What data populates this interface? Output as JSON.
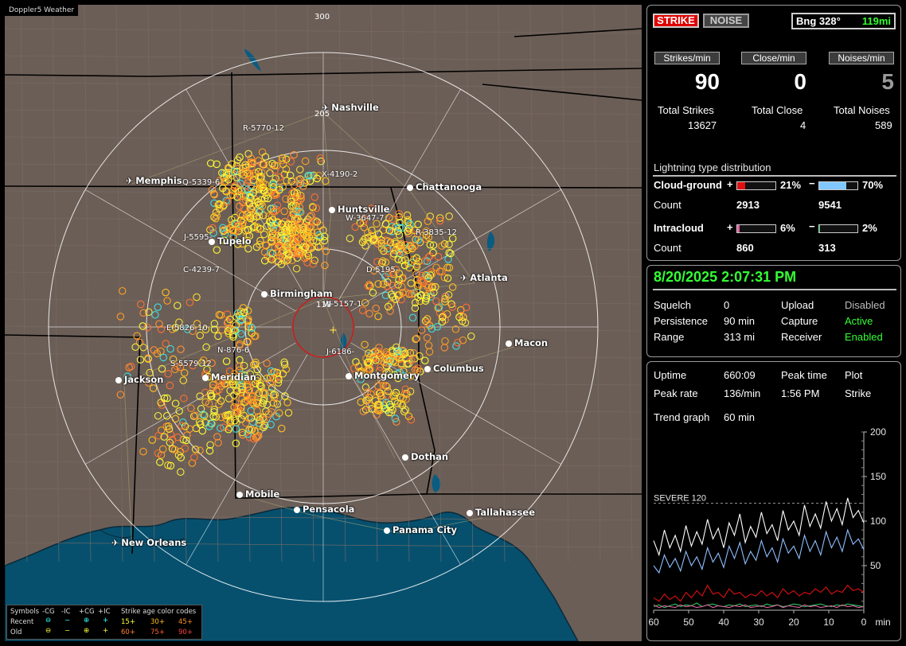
{
  "map": {
    "title": "Doppler5 Weather",
    "ring_labels": [
      "300",
      "205",
      "110"
    ],
    "cities": [
      {
        "name": "Nashville",
        "kind": "airport"
      },
      {
        "name": "Memphis",
        "kind": "airport"
      },
      {
        "name": "Chattanooga",
        "kind": "city"
      },
      {
        "name": "Huntsville",
        "kind": "city"
      },
      {
        "name": "Tupelo",
        "kind": "city"
      },
      {
        "name": "Atlanta",
        "kind": "airport"
      },
      {
        "name": "Birmingham",
        "kind": "city"
      },
      {
        "name": "Macon",
        "kind": "city"
      },
      {
        "name": "Jackson",
        "kind": "city"
      },
      {
        "name": "Meridian",
        "kind": "city"
      },
      {
        "name": "Montgomery",
        "kind": "city"
      },
      {
        "name": "Columbus",
        "kind": "city"
      },
      {
        "name": "Dothan",
        "kind": "city"
      },
      {
        "name": "Mobile",
        "kind": "city"
      },
      {
        "name": "Pensacola",
        "kind": "city"
      },
      {
        "name": "Tallahassee",
        "kind": "city"
      },
      {
        "name": "Panama City",
        "kind": "city"
      },
      {
        "name": "New Orleans",
        "kind": "airport"
      }
    ],
    "cell_labels": [
      "R-5770-12",
      "X-4190-2",
      "Q-5339-6",
      "W-3647-7",
      "J-5595-",
      "R-3835-12",
      "C-4239-7",
      "D-5195-",
      "W-5157-1",
      "E-5826-10",
      "N-876-6",
      "J-6186-",
      "S-5579-12"
    ],
    "legend": {
      "symbols_title": "Symbols",
      "col_headers": [
        "-CG",
        "-IC",
        "+CG",
        "+IC"
      ],
      "rows": [
        "Recent",
        "Old"
      ],
      "color_title": "Strike age color codes",
      "recent_codes": [
        "15+",
        "30+",
        "45+"
      ],
      "old_codes": [
        "60+",
        "75+",
        "90+"
      ]
    }
  },
  "status": {
    "strike_btn": "STRIKE",
    "noise_btn": "NOISE",
    "bearing": "Bng 328°",
    "distance": "119mi"
  },
  "rates": [
    {
      "label": "Strikes/min",
      "value": "90",
      "total_label": "Total Strikes",
      "total": "13627",
      "color": "#ffffff"
    },
    {
      "label": "Close/min",
      "value": "0",
      "total_label": "Total Close",
      "total": "4",
      "color": "#ffffff"
    },
    {
      "label": "Noises/min",
      "value": "5",
      "total_label": "Total Noises",
      "total": "589",
      "color": "#9a9a9a"
    }
  ],
  "distribution": {
    "title": "Lightning type distribution",
    "cloud_ground": {
      "label": "Cloud-ground",
      "pos_pct": "21%",
      "neg_pct": "70%",
      "pos_frac": 0.21,
      "neg_frac": 0.7,
      "pos_count": "2913",
      "neg_count": "9541"
    },
    "intracloud": {
      "label": "Intracloud",
      "pos_pct": "6%",
      "neg_pct": "2%",
      "pos_frac": 0.06,
      "neg_frac": 0.02,
      "pos_count": "860",
      "neg_count": "313"
    },
    "count_label": "Count",
    "plus": "+",
    "minus": "−",
    "colors": {
      "cg_pos": "#e01010",
      "cg_neg": "#80c8ff",
      "ic_pos": "#e060a0",
      "ic_neg": "#30c060"
    }
  },
  "session": {
    "datetime": "8/20/2025 2:07:31 PM",
    "squelch_label": "Squelch",
    "squelch": "0",
    "persistence_label": "Persistence",
    "persistence": "90 min",
    "range_label": "Range",
    "range": "313 mi",
    "upload_label": "Upload",
    "upload": "Disabled",
    "capture_label": "Capture",
    "capture": "Active",
    "receiver_label": "Receiver",
    "receiver": "Enabled"
  },
  "stats": {
    "uptime_label": "Uptime",
    "uptime": "660:09",
    "peak_time_label": "Peak time",
    "peak_time": "1:56 PM",
    "plot_label": "Plot",
    "plot": "Strike",
    "peak_rate_label": "Peak rate",
    "peak_rate": "136/min",
    "trend_label": "Trend graph",
    "trend": "60 min"
  },
  "chart_data": {
    "type": "line",
    "xlabel": "min",
    "x_ticks": [
      "60",
      "50",
      "40",
      "30",
      "20",
      "10",
      "0"
    ],
    "y_ticks": [
      "200",
      "150",
      "100",
      "50"
    ],
    "xlim": [
      60,
      0
    ],
    "ylim": [
      0,
      200
    ],
    "threshold": {
      "label": "SEVERE 120",
      "value": 120
    },
    "series": [
      {
        "color": "#ffffff",
        "values": [
          78,
          62,
          90,
          70,
          84,
          66,
          95,
          72,
          88,
          74,
          102,
          80,
          92,
          70,
          98,
          84,
          108,
          76,
          94,
          82,
          110,
          86,
          96,
          78,
          112,
          90,
          100,
          84,
          118,
          94,
          108,
          92,
          122,
          100,
          114,
          96,
          126,
          104,
          112,
          98
        ]
      },
      {
        "color": "#8fbfff",
        "values": [
          50,
          42,
          62,
          48,
          58,
          44,
          66,
          50,
          60,
          46,
          70,
          54,
          64,
          48,
          72,
          58,
          76,
          52,
          66,
          56,
          78,
          60,
          70,
          54,
          80,
          64,
          72,
          58,
          84,
          66,
          78,
          62,
          88,
          70,
          82,
          66,
          90,
          74,
          80,
          68
        ]
      },
      {
        "color": "#e01010",
        "values": [
          14,
          10,
          18,
          12,
          16,
          10,
          20,
          14,
          22,
          16,
          28,
          18,
          20,
          14,
          24,
          18,
          20,
          14,
          18,
          16,
          22,
          16,
          20,
          14,
          24,
          18,
          22,
          16,
          20,
          18,
          24,
          20,
          26,
          18,
          22,
          20,
          28,
          22,
          24,
          20
        ]
      },
      {
        "color": "#30c060",
        "values": [
          4,
          6,
          3,
          5,
          7,
          4,
          6,
          5,
          8,
          4,
          6,
          7,
          5,
          4,
          6,
          5,
          7,
          4,
          5,
          6,
          4,
          7,
          5,
          6,
          4,
          5,
          7,
          6,
          4,
          5,
          6,
          7,
          5,
          4,
          6,
          5,
          7,
          6,
          5,
          4
        ]
      },
      {
        "color": "#e060a0",
        "values": [
          6,
          3,
          5,
          4,
          3,
          6,
          4,
          5,
          3,
          4,
          6,
          3,
          5,
          4,
          3,
          5,
          4,
          6,
          3,
          4,
          5,
          3,
          4,
          6,
          3,
          5,
          4,
          3,
          6,
          4,
          5,
          3,
          4,
          5,
          3,
          6,
          4,
          5,
          3,
          4
        ]
      }
    ]
  }
}
